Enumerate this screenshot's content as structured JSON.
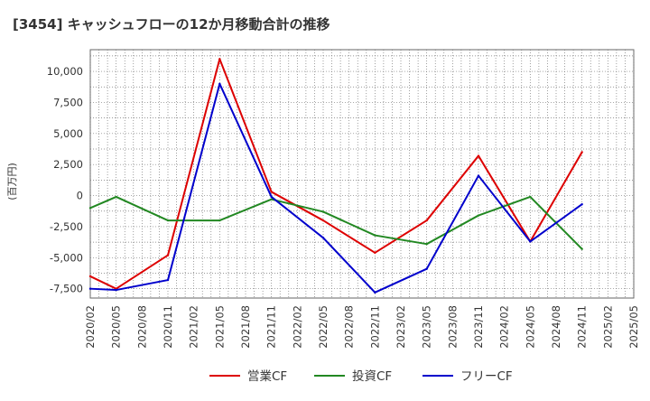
{
  "chart_data": {
    "type": "line",
    "title": "[3454]  キャッシュフローの12か月移動合計の推移",
    "ylabel": "(百万円)",
    "xlabel": "",
    "ylim": [
      -8250,
      11750
    ],
    "y_ticks": [
      10000,
      7500,
      5000,
      2500,
      0,
      -2500,
      -5000,
      -7500
    ],
    "y_tick_labels": [
      "10,000",
      "7,500",
      "5,000",
      "2,500",
      "0",
      "-2,500",
      "-5,000",
      "-7,500"
    ],
    "categories": [
      "2020/02",
      "2020/05",
      "2020/08",
      "2020/11",
      "2021/02",
      "2021/05",
      "2021/08",
      "2021/11",
      "2022/02",
      "2022/05",
      "2022/08",
      "2022/11",
      "2023/02",
      "2023/05",
      "2023/08",
      "2023/11",
      "2024/02",
      "2024/05",
      "2024/08",
      "2024/11",
      "2025/02",
      "2025/05"
    ],
    "grid": true,
    "legend_position": "bottom",
    "series": [
      {
        "name": "営業CF",
        "color": "#dd0000",
        "values": [
          -6500,
          -7500,
          null,
          -4800,
          null,
          11000,
          null,
          300,
          null,
          -2000,
          null,
          -4600,
          null,
          -2000,
          null,
          3200,
          null,
          -3700,
          null,
          3500,
          null,
          null
        ]
      },
      {
        "name": "投資CF",
        "color": "#228822",
        "values": [
          -1000,
          -100,
          null,
          -2000,
          null,
          -2000,
          null,
          -300,
          null,
          -1300,
          null,
          -3200,
          null,
          -3900,
          null,
          -1600,
          null,
          -100,
          null,
          -4300,
          null,
          null
        ]
      },
      {
        "name": "フリーCF",
        "color": "#0000cc",
        "values": [
          -7500,
          -7600,
          null,
          -6800,
          null,
          9000,
          null,
          -100,
          null,
          -3400,
          null,
          -7800,
          null,
          -5900,
          null,
          1600,
          null,
          -3700,
          null,
          -700,
          null,
          null
        ]
      }
    ]
  }
}
